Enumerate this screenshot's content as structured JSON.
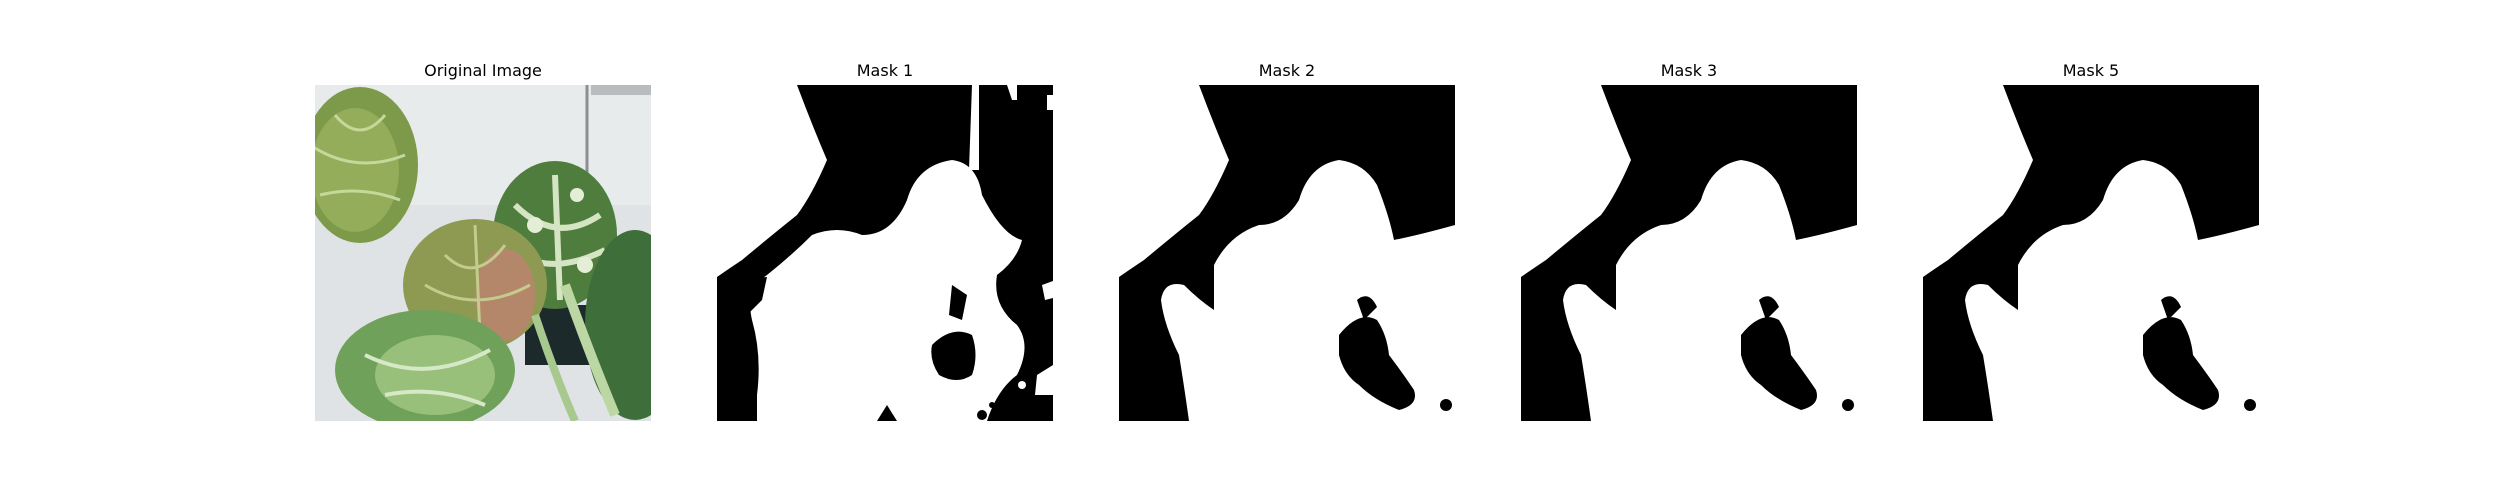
{
  "panels": [
    {
      "title": "Original Image"
    },
    {
      "title": "Mask 1"
    },
    {
      "title": "Mask 2"
    },
    {
      "title": "Mask 3"
    },
    {
      "title": "Mask 5"
    }
  ],
  "colors": {
    "background": "#ffffff",
    "mask_fg": "#ffffff",
    "mask_bg": "#000000",
    "photo_backdrop": "#dfe3e5",
    "leaf_dark": "#5b7a35",
    "leaf_light": "#a9c27a",
    "leaf_green": "#3f7a3a"
  }
}
